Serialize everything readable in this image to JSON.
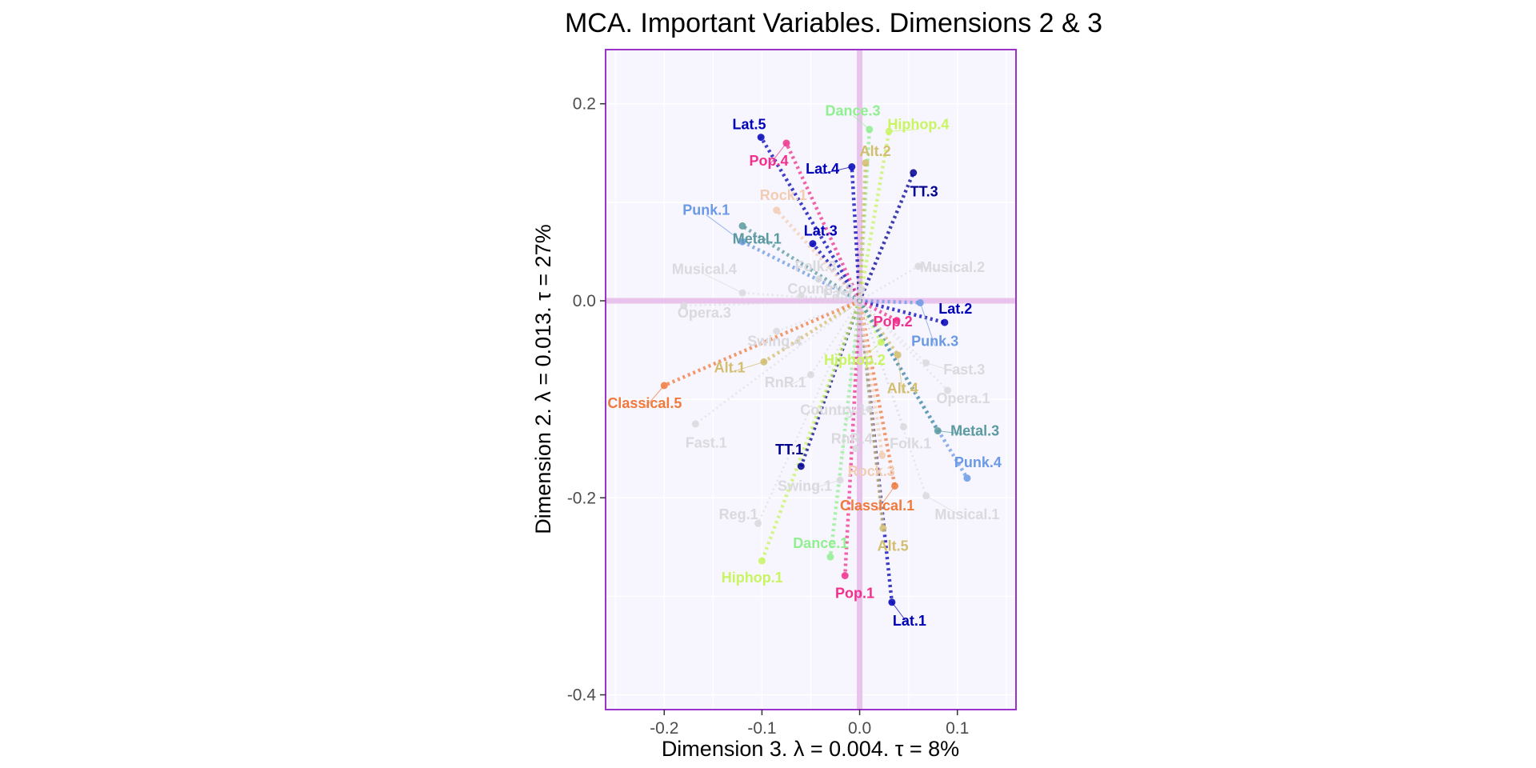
{
  "chart_data": {
    "type": "scatter",
    "title": "MCA. Important Variables. Dimensions 2 & 3",
    "xlabel": "Dimension 3.   λ = 0.004.  τ = 8%",
    "ylabel": "Dimension 2.   λ = 0.013.  τ = 27%",
    "xlim": [
      -0.26,
      0.16
    ],
    "ylim": [
      -0.415,
      0.255
    ],
    "x_ticks": [
      -0.2,
      -0.1,
      0.0,
      0.1
    ],
    "x_tick_labels": [
      "-0.2",
      "-0.1",
      "0.0",
      "0.1"
    ],
    "y_ticks": [
      -0.4,
      -0.2,
      0.0,
      0.2
    ],
    "y_tick_labels": [
      "-0.4",
      "-0.2",
      "0.0",
      "0.2"
    ],
    "grid": true,
    "reference_lines": {
      "x": 0.0,
      "y": 0.0
    },
    "colors": {
      "panel_background": "#f7f5fd",
      "panel_border": "#9933cc",
      "reference_line": "#e8c3ec",
      "gridline": "#ffffff"
    },
    "series": [
      {
        "name": "Lat",
        "color": "#0000b8",
        "points": [
          {
            "label": "Lat.1",
            "x": 0.033,
            "y": -0.306,
            "tx": 0.051,
            "ty": -0.325
          },
          {
            "label": "Lat.2",
            "x": 0.087,
            "y": -0.022,
            "tx": 0.098,
            "ty": -0.008
          },
          {
            "label": "Lat.3",
            "x": -0.048,
            "y": 0.058,
            "tx": -0.04,
            "ty": 0.071
          },
          {
            "label": "Lat.4",
            "x": -0.008,
            "y": 0.136,
            "tx": -0.038,
            "ty": 0.134
          },
          {
            "label": "Lat.5",
            "x": -0.101,
            "y": 0.166,
            "tx": -0.113,
            "ty": 0.179
          }
        ]
      },
      {
        "name": "TT",
        "color": "#000090",
        "points": [
          {
            "label": "TT.1",
            "x": -0.06,
            "y": -0.168,
            "tx": -0.072,
            "ty": -0.151
          },
          {
            "label": "TT.3",
            "x": 0.055,
            "y": 0.13,
            "tx": 0.066,
            "ty": 0.111
          }
        ]
      },
      {
        "name": "Pop",
        "color": "#f0308c",
        "points": [
          {
            "label": "Pop.1",
            "x": -0.015,
            "y": -0.279,
            "tx": -0.005,
            "ty": -0.297
          },
          {
            "label": "Pop.2",
            "x": 0.038,
            "y": -0.02,
            "tx": 0.034,
            "ty": -0.021
          },
          {
            "label": "Pop.4",
            "x": -0.075,
            "y": 0.16,
            "tx": -0.093,
            "ty": 0.142
          }
        ]
      },
      {
        "name": "Dance",
        "color": "#90f090",
        "points": [
          {
            "label": "Dance.1",
            "x": -0.03,
            "y": -0.26,
            "tx": -0.04,
            "ty": -0.246
          },
          {
            "label": "Dance.3",
            "x": 0.01,
            "y": 0.174,
            "tx": -0.007,
            "ty": 0.193
          }
        ]
      },
      {
        "name": "Hiphop",
        "color": "#c8f560",
        "points": [
          {
            "label": "Hiphop.1",
            "x": -0.1,
            "y": -0.264,
            "tx": -0.11,
            "ty": -0.281
          },
          {
            "label": "Hiphop.2",
            "x": 0.022,
            "y": -0.042,
            "tx": -0.005,
            "ty": -0.06
          },
          {
            "label": "Hiphop.4",
            "x": 0.03,
            "y": 0.172,
            "tx": 0.06,
            "ty": 0.179
          }
        ]
      },
      {
        "name": "Alt",
        "color": "#d2be6e",
        "points": [
          {
            "label": "Alt.1",
            "x": -0.098,
            "y": -0.062,
            "tx": -0.133,
            "ty": -0.068
          },
          {
            "label": "Alt.2",
            "x": 0.006,
            "y": 0.14,
            "tx": 0.016,
            "ty": 0.152
          },
          {
            "label": "Alt.4",
            "x": 0.039,
            "y": -0.055,
            "tx": 0.044,
            "ty": -0.089
          },
          {
            "label": "Alt.5",
            "x": 0.024,
            "y": -0.231,
            "tx": 0.034,
            "ty": -0.249
          }
        ]
      },
      {
        "name": "Classical",
        "color": "#f07a3c",
        "points": [
          {
            "label": "Classical.1",
            "x": 0.036,
            "y": -0.188,
            "tx": 0.018,
            "ty": -0.208
          },
          {
            "label": "Classical.5",
            "x": -0.2,
            "y": -0.086,
            "tx": -0.22,
            "ty": -0.104
          }
        ]
      },
      {
        "name": "Rock",
        "color": "#f3cdb3",
        "points": [
          {
            "label": "Rock.1",
            "x": -0.085,
            "y": 0.092,
            "tx": -0.078,
            "ty": 0.107
          },
          {
            "label": "Rock.3",
            "x": 0.023,
            "y": -0.157,
            "tx": 0.012,
            "ty": -0.173
          }
        ]
      },
      {
        "name": "Punk",
        "color": "#6a9ae6",
        "points": [
          {
            "label": "Punk.1",
            "x": -0.12,
            "y": 0.06,
            "tx": -0.157,
            "ty": 0.092
          },
          {
            "label": "Punk.3",
            "x": 0.062,
            "y": -0.002,
            "tx": 0.077,
            "ty": -0.041
          },
          {
            "label": "Punk.4",
            "x": 0.11,
            "y": -0.18,
            "tx": 0.121,
            "ty": -0.164
          }
        ]
      },
      {
        "name": "Metal",
        "color": "#5a9aa0",
        "points": [
          {
            "label": "Metal.1",
            "x": -0.12,
            "y": 0.076,
            "tx": -0.105,
            "ty": 0.063
          },
          {
            "label": "Metal.3",
            "x": 0.08,
            "y": -0.132,
            "tx": 0.118,
            "ty": -0.132
          }
        ]
      },
      {
        "name": "Other",
        "color": "#dadade",
        "points": [
          {
            "label": "Musical.1",
            "x": 0.068,
            "y": -0.198,
            "tx": 0.11,
            "ty": -0.217
          },
          {
            "label": "Musical.2",
            "x": 0.06,
            "y": 0.035,
            "tx": 0.095,
            "ty": 0.034
          },
          {
            "label": "Musical.4",
            "x": -0.12,
            "y": 0.008,
            "tx": -0.159,
            "ty": 0.032
          },
          {
            "label": "Folk.1",
            "x": 0.045,
            "y": -0.128,
            "tx": 0.052,
            "ty": -0.145
          },
          {
            "label": "Folk.3",
            "x": -0.042,
            "y": 0.022,
            "tx": -0.045,
            "ty": 0.035
          },
          {
            "label": "Country.3",
            "x": -0.06,
            "y": 0.005,
            "tx": -0.04,
            "ty": 0.012
          },
          {
            "label": "Country.1",
            "x": 0.01,
            "y": -0.11,
            "tx": -0.027,
            "ty": -0.111
          },
          {
            "label": "Fast.1",
            "x": -0.168,
            "y": -0.125,
            "tx": -0.157,
            "ty": -0.144
          },
          {
            "label": "Fast.3",
            "x": 0.068,
            "y": -0.063,
            "tx": 0.107,
            "ty": -0.07
          },
          {
            "label": "Fast.2",
            "x": 0.002,
            "y": 0.012,
            "tx": -0.016,
            "ty": 0.007
          },
          {
            "label": "Opera.1",
            "x": 0.09,
            "y": -0.091,
            "tx": 0.106,
            "ty": -0.099
          },
          {
            "label": "Opera.3",
            "x": -0.18,
            "y": -0.005,
            "tx": -0.159,
            "ty": -0.012
          },
          {
            "label": "Swing.1",
            "x": -0.02,
            "y": -0.182,
            "tx": -0.056,
            "ty": -0.188
          },
          {
            "label": "Swing.4",
            "x": -0.085,
            "y": -0.031,
            "tx": -0.087,
            "ty": -0.041
          },
          {
            "label": "RnR.1",
            "x": -0.05,
            "y": -0.075,
            "tx": -0.076,
            "ty": -0.083
          },
          {
            "label": "RnR.4",
            "x": -0.004,
            "y": -0.15,
            "tx": -0.008,
            "ty": -0.14
          },
          {
            "label": "Reg.1",
            "x": -0.104,
            "y": -0.226,
            "tx": -0.124,
            "ty": -0.217
          }
        ]
      }
    ]
  }
}
